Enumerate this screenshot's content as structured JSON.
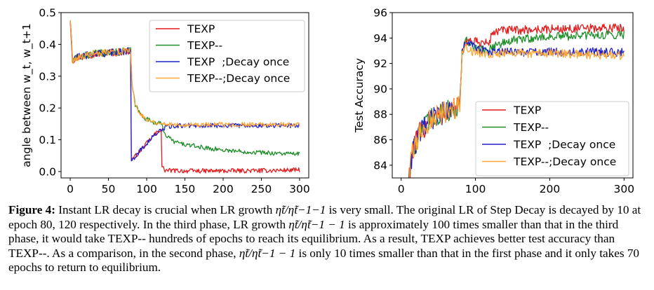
{
  "chart_data": [
    {
      "type": "line",
      "xlabel": "",
      "ylabel": "angle between w_t, w_t+1",
      "xlim": [
        -12,
        312
      ],
      "ylim": [
        -0.02,
        0.5
      ],
      "xticks": [
        0,
        50,
        100,
        150,
        200,
        250,
        300
      ],
      "yticks": [
        0.0,
        0.1,
        0.2,
        0.3,
        0.4,
        0.5
      ],
      "xtick_labels": [
        "0",
        "50",
        "100",
        "150",
        "200",
        "250",
        "300"
      ],
      "ytick_labels": [
        "0.0",
        "0.1",
        "0.2",
        "0.3",
        "0.4",
        "0.5"
      ],
      "legend_position": "top-right",
      "series": [
        {
          "name": "TEXP",
          "color": "#e41a1c",
          "points": [
            [
              0,
              0.48
            ],
            [
              3,
              0.35
            ],
            [
              10,
              0.36
            ],
            [
              30,
              0.37
            ],
            [
              60,
              0.375
            ],
            [
              79,
              0.38
            ],
            [
              80,
              0.04
            ],
            [
              84,
              0.045
            ],
            [
              95,
              0.075
            ],
            [
              110,
              0.115
            ],
            [
              119,
              0.135
            ],
            [
              120,
              0.015
            ],
            [
              124,
              0.004
            ],
            [
              150,
              0.002
            ],
            [
              200,
              0.002
            ],
            [
              250,
              0.003
            ],
            [
              300,
              0.005
            ]
          ]
        },
        {
          "name": "TEXP--",
          "color": "#1f8f2a",
          "points": [
            [
              0,
              0.48
            ],
            [
              3,
              0.35
            ],
            [
              10,
              0.36
            ],
            [
              30,
              0.37
            ],
            [
              60,
              0.375
            ],
            [
              79,
              0.38
            ],
            [
              81,
              0.27
            ],
            [
              85,
              0.21
            ],
            [
              92,
              0.18
            ],
            [
              100,
              0.165
            ],
            [
              110,
              0.155
            ],
            [
              119,
              0.15
            ],
            [
              125,
              0.115
            ],
            [
              135,
              0.095
            ],
            [
              150,
              0.085
            ],
            [
              175,
              0.075
            ],
            [
              200,
              0.068
            ],
            [
              225,
              0.063
            ],
            [
              250,
              0.06
            ],
            [
              275,
              0.057
            ],
            [
              300,
              0.055
            ]
          ]
        },
        {
          "name": "TEXP  ;Decay once",
          "color": "#1f1fcf",
          "points": [
            [
              0,
              0.48
            ],
            [
              3,
              0.35
            ],
            [
              10,
              0.36
            ],
            [
              30,
              0.37
            ],
            [
              60,
              0.375
            ],
            [
              79,
              0.38
            ],
            [
              80,
              0.04
            ],
            [
              84,
              0.045
            ],
            [
              95,
              0.075
            ],
            [
              110,
              0.115
            ],
            [
              125,
              0.14
            ],
            [
              150,
              0.145
            ],
            [
              200,
              0.145
            ],
            [
              250,
              0.145
            ],
            [
              300,
              0.145
            ]
          ]
        },
        {
          "name": "TEXP--;Decay once",
          "color": "#ffa630",
          "points": [
            [
              0,
              0.48
            ],
            [
              3,
              0.35
            ],
            [
              10,
              0.36
            ],
            [
              30,
              0.37
            ],
            [
              60,
              0.375
            ],
            [
              79,
              0.38
            ],
            [
              81,
              0.27
            ],
            [
              85,
              0.21
            ],
            [
              92,
              0.18
            ],
            [
              100,
              0.165
            ],
            [
              110,
              0.155
            ],
            [
              120,
              0.15
            ],
            [
              150,
              0.148
            ],
            [
              200,
              0.148
            ],
            [
              250,
              0.148
            ],
            [
              300,
              0.148
            ]
          ]
        }
      ]
    },
    {
      "type": "line",
      "xlabel": "",
      "ylabel": "Test Accuracy",
      "xlim": [
        -12,
        312
      ],
      "ylim": [
        83,
        96
      ],
      "xticks": [
        0,
        100,
        200,
        300
      ],
      "yticks": [
        84,
        86,
        88,
        90,
        92,
        94,
        96
      ],
      "xtick_labels": [
        "0",
        "100",
        "200",
        "300"
      ],
      "ytick_labels": [
        "84",
        "86",
        "88",
        "90",
        "92",
        "94",
        "96"
      ],
      "legend_position": "lower-right",
      "series": [
        {
          "name": "TEXP",
          "color": "#e41a1c",
          "points": [
            [
              10,
              83
            ],
            [
              15,
              85
            ],
            [
              25,
              86.5
            ],
            [
              40,
              87.6
            ],
            [
              60,
              88.2
            ],
            [
              79,
              88.6
            ],
            [
              82,
              92.8
            ],
            [
              87,
              93.8
            ],
            [
              100,
              93.7
            ],
            [
              115,
              93.6
            ],
            [
              119,
              93.6
            ],
            [
              122,
              94.4
            ],
            [
              135,
              94.6
            ],
            [
              150,
              94.6
            ],
            [
              200,
              94.7
            ],
            [
              250,
              94.75
            ],
            [
              300,
              94.8
            ]
          ]
        },
        {
          "name": "TEXP--",
          "color": "#1f8f2a",
          "points": [
            [
              10,
              83
            ],
            [
              15,
              85
            ],
            [
              25,
              86.5
            ],
            [
              40,
              87.6
            ],
            [
              60,
              88.2
            ],
            [
              79,
              88.6
            ],
            [
              82,
              92.8
            ],
            [
              87,
              93.8
            ],
            [
              100,
              93.2
            ],
            [
              115,
              93.0
            ],
            [
              125,
              93.4
            ],
            [
              150,
              93.8
            ],
            [
              175,
              94.0
            ],
            [
              200,
              94.1
            ],
            [
              250,
              94.2
            ],
            [
              300,
              94.3
            ]
          ]
        },
        {
          "name": "TEXP  ;Decay once",
          "color": "#1f1fcf",
          "points": [
            [
              10,
              83
            ],
            [
              15,
              85
            ],
            [
              25,
              86.5
            ],
            [
              40,
              87.6
            ],
            [
              60,
              88.2
            ],
            [
              79,
              88.6
            ],
            [
              82,
              92.8
            ],
            [
              87,
              93.8
            ],
            [
              100,
              93.2
            ],
            [
              120,
              92.9
            ],
            [
              150,
              92.9
            ],
            [
              200,
              92.9
            ],
            [
              250,
              92.9
            ],
            [
              300,
              92.9
            ]
          ]
        },
        {
          "name": "TEXP--;Decay once",
          "color": "#ffa630",
          "points": [
            [
              10,
              83
            ],
            [
              15,
              85
            ],
            [
              25,
              86.5
            ],
            [
              40,
              87.6
            ],
            [
              60,
              88.2
            ],
            [
              79,
              88.6
            ],
            [
              82,
              92.8
            ],
            [
              87,
              93.4
            ],
            [
              100,
              92.8
            ],
            [
              120,
              92.8
            ],
            [
              150,
              92.8
            ],
            [
              200,
              92.8
            ],
            [
              250,
              92.7
            ],
            [
              300,
              92.6
            ]
          ]
        }
      ]
    }
  ],
  "caption": {
    "label": "Figure 4:",
    "seg1": " Instant LR decay is crucial when LR growth ",
    "seg2": " is very small. The original LR of Step Decay is decayed by 10 at epoch 80, 120 respectively. In the third phase, LR growth ",
    "seg3": " is approximately 100 times smaller than that in the third phase, it would take TEXP-- hundreds of epochs to reach its equilibrium. As a result, TEXP achieves better test accuracy than TEXP--. As a comparison, in the second phase, ",
    "seg4": " is only 10 times smaller than that in the first phase and it only takes 70 epochs to return to equilibrium.",
    "expr_minus1": "η̃t/η̃t−1−1",
    "expr_minus1_b": "η̃t/η̃t−1 − 1",
    "expr_plain": "η̃t/η̃t−1 − 1"
  }
}
